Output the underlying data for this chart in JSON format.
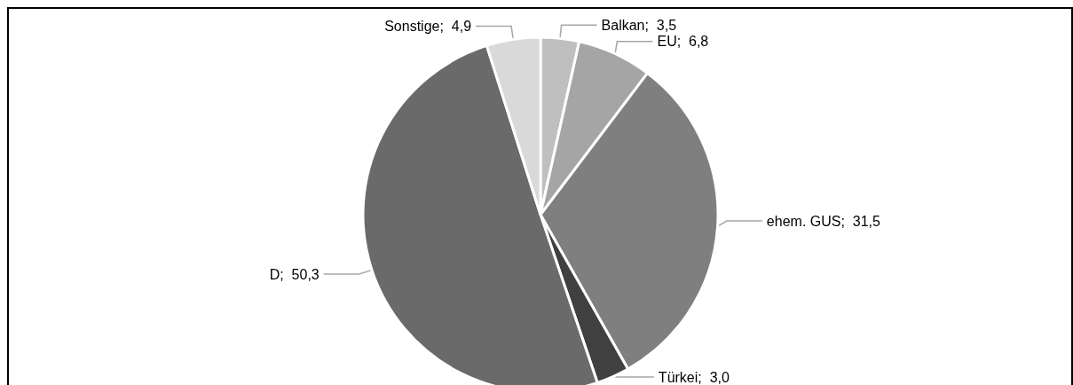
{
  "chart_data": {
    "type": "pie",
    "categories": [
      "Balkan",
      "EU",
      "ehem. GUS",
      "Türkei",
      "D",
      "Sonstige"
    ],
    "values": [
      3.5,
      6.8,
      31.5,
      3.0,
      50.3,
      4.9
    ],
    "value_labels": [
      "3,5",
      "6,8",
      "31,5",
      "3,0",
      "50,3",
      "4,9"
    ],
    "colors": [
      "#bfbfbf",
      "#a5a5a5",
      "#7f7f7f",
      "#404040",
      "#6a6a6a",
      "#d9d9d9"
    ],
    "legend": false
  }
}
